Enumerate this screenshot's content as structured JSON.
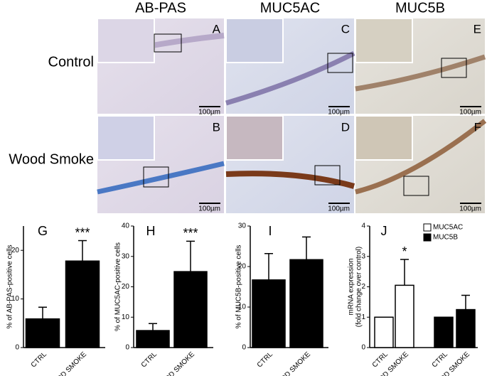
{
  "columns": [
    "AB-PAS",
    "MUC5AC",
    "MUC5B"
  ],
  "rows": [
    "Control",
    "Wood Smoke"
  ],
  "panels": [
    {
      "letter": "A",
      "scale": "100µm"
    },
    {
      "letter": "C",
      "scale": "100µm"
    },
    {
      "letter": "E",
      "scale": "100µm"
    },
    {
      "letter": "B",
      "scale": "100µm"
    },
    {
      "letter": "D",
      "scale": "100µm"
    },
    {
      "letter": "F",
      "scale": "100µm"
    }
  ],
  "chart_data": [
    {
      "type": "bar",
      "label": "G",
      "y_label": "% of AB-PAS-positive cells",
      "categories": [
        "CTRL",
        "WOOD SMOKE"
      ],
      "series": [
        {
          "color": "#000000",
          "values": [
            5.9,
            17.8
          ],
          "errors": [
            2.4,
            4.2
          ]
        }
      ],
      "annotation": "***",
      "ylim": [
        0,
        25
      ],
      "yticks": [
        0,
        10,
        20
      ]
    },
    {
      "type": "bar",
      "label": "H",
      "y_label": "% of MUC5AC-positive cells",
      "categories": [
        "CTRL",
        "WOOD SMOKE"
      ],
      "series": [
        {
          "color": "#000000",
          "values": [
            5.6,
            25
          ],
          "errors": [
            2.3,
            10
          ]
        }
      ],
      "annotation": "***",
      "ylim": [
        0,
        40
      ],
      "yticks": [
        0,
        10,
        20,
        30,
        40
      ]
    },
    {
      "type": "bar",
      "label": "I",
      "y_label": "% of MUC5B-positive cells",
      "categories": [
        "CTRL",
        "WOOD SMOKE"
      ],
      "series": [
        {
          "color": "#000000",
          "values": [
            16.7,
            21.7
          ],
          "errors": [
            6.5,
            5.6
          ]
        }
      ],
      "ylim": [
        0,
        30
      ],
      "yticks": [
        0,
        10,
        20,
        30
      ]
    },
    {
      "type": "bar",
      "label": "J",
      "y_label": [
        "mRNA expression",
        "(fold change over control)"
      ],
      "categories": [
        "CTRL",
        "WOOD SMOKE",
        "CTRL",
        "WOOD SMOKE"
      ],
      "series": [
        {
          "name": "MUC5AC",
          "color": "#ffffff",
          "values": [
            1,
            2.05,
            null,
            null
          ],
          "errors": [
            0,
            0.85,
            null,
            null
          ]
        },
        {
          "name": "MUC5B",
          "color": "#000000",
          "values": [
            null,
            null,
            1,
            1.25
          ],
          "errors": [
            null,
            null,
            0,
            0.47
          ]
        }
      ],
      "annotation": "*",
      "ylim": [
        0,
        4
      ],
      "yticks": [
        0,
        1,
        2,
        3,
        4
      ]
    }
  ]
}
